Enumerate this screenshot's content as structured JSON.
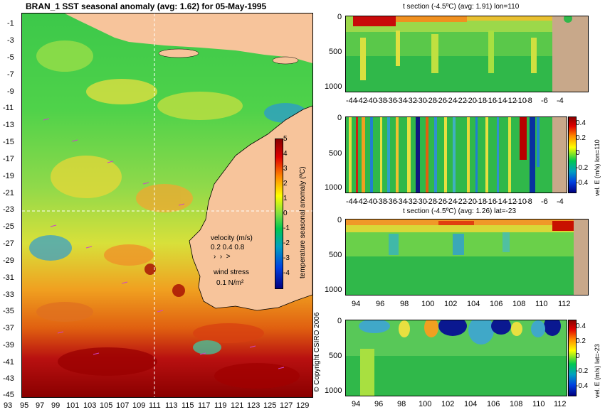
{
  "map": {
    "title": "BRAN_1 SST seasonal anomaly (avg: 1.62) for 05-May-1995",
    "lat_labels": [
      "-1",
      "-3",
      "-5",
      "-7",
      "-9",
      "-11",
      "-13",
      "-15",
      "-17",
      "-19",
      "-21",
      "-23",
      "-25",
      "-27",
      "-29",
      "-31",
      "-33",
      "-35",
      "-37",
      "-39",
      "-41",
      "-43",
      "-45"
    ],
    "lon_labels": [
      "93",
      "95",
      "97",
      "99",
      "101",
      "103",
      "105",
      "107",
      "109",
      "111",
      "113",
      "115",
      "117",
      "119",
      "121",
      "123",
      "125",
      "127",
      "129"
    ],
    "colorbar_label": "temperature seasonal anomaly (ºC)",
    "colorbar_ticks": [
      "5",
      "4",
      "3",
      "2",
      "1",
      "0",
      "-1",
      "-2",
      "-3",
      "-4"
    ],
    "velocity_label": "velocity (m/s)",
    "velocity_scale": "0.2 0.4 0.8",
    "wind_label": "wind stress",
    "wind_scale": "0.1 N/m²",
    "copyright": "© Copyright CSIRO 2006",
    "colors": {
      "land": "#f7c49b",
      "crosshair": "#ffffff",
      "vectors": "#cc44cc"
    }
  },
  "panels": [
    {
      "title": "t section (-4.5ºC) (avg: 1.91) lon=110",
      "y_ticks": [
        "0",
        "500",
        "1000"
      ],
      "x_ticks": [
        "-44",
        "-42",
        "-40",
        "-38",
        "-36",
        "-34",
        "-32",
        "-30",
        "-28",
        "-26",
        "-24",
        "-22",
        "-20",
        "-18",
        "-16",
        "-14",
        "-12",
        "-10",
        "-8",
        "-6",
        "-4"
      ],
      "side_label": "",
      "cb_ticks": []
    },
    {
      "title": "",
      "y_ticks": [
        "0",
        "500",
        "1000"
      ],
      "x_ticks": [
        "-44",
        "-42",
        "-40",
        "-38",
        "-36",
        "-34",
        "-32",
        "-30",
        "-28",
        "-26",
        "-24",
        "-22",
        "-20",
        "-18",
        "-16",
        "-14",
        "-12",
        "-10",
        "-8",
        "-6",
        "-4"
      ],
      "side_label": "vel. E (m/s) lon=110",
      "cb_ticks": [
        "0.4",
        "0.2",
        "0",
        "-0.2",
        "-0.4"
      ]
    },
    {
      "title": "t section (-4.5ºC) (avg: 1.26) lat=-23",
      "y_ticks": [
        "0",
        "500",
        "1000"
      ],
      "x_ticks": [
        "94",
        "96",
        "98",
        "100",
        "102",
        "104",
        "106",
        "108",
        "110",
        "112"
      ],
      "side_label": "",
      "cb_ticks": []
    },
    {
      "title": "",
      "y_ticks": [
        "0",
        "500",
        "1000"
      ],
      "x_ticks": [
        "94",
        "96",
        "98",
        "100",
        "102",
        "104",
        "106",
        "108",
        "110",
        "112"
      ],
      "side_label": "vel. E (m/s) lat=-23",
      "cb_ticks": [
        "0.4",
        "0.2",
        "0",
        "-0.2",
        "-0.4"
      ]
    }
  ]
}
